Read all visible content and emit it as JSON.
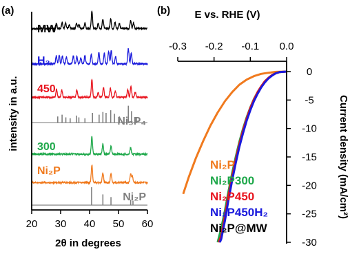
{
  "panel_a": {
    "label": "(a)",
    "xlabel": "2θ in degrees",
    "ylabel": "intensity in a.u.",
    "traces": [
      {
        "label": "MW",
        "color": "#000000"
      },
      {
        "label": "H₂",
        "color": "#1a1adc"
      },
      {
        "label": "450",
        "color": "#e8141e"
      },
      {
        "label": "Ni₅P₄",
        "color": "#808080"
      },
      {
        "label": "300",
        "color": "#1ea84a"
      },
      {
        "label": "Ni₂P",
        "color": "#f07a1e"
      },
      {
        "label": "Ni₂P",
        "color": "#808080"
      }
    ]
  },
  "panel_b": {
    "label": "(b)",
    "xlabel": "E vs. RHE (V)",
    "ylabel": "Current density (mA/cm²)"
  },
  "chart_data": [
    {
      "type": "line",
      "panel": "(a)",
      "xlabel": "2θ in degrees",
      "ylabel": "intensity in a.u.",
      "xlim": [
        20,
        60
      ],
      "x_ticks": [
        20,
        30,
        40,
        50,
        60
      ],
      "series": [
        {
          "name": "MW",
          "color": "#000000",
          "offset": 9,
          "peaks": [
            [
              28.5,
              0.3
            ],
            [
              30.5,
              0.35
            ],
            [
              31.7,
              0.3
            ],
            [
              33,
              0.2
            ],
            [
              35.5,
              0.3
            ],
            [
              36.3,
              0.25
            ],
            [
              38.4,
              0.3
            ],
            [
              40.8,
              1.0
            ],
            [
              43,
              0.3
            ],
            [
              44.6,
              0.55
            ],
            [
              47.3,
              0.55
            ],
            [
              48.8,
              0.35
            ],
            [
              50.3,
              0.3
            ],
            [
              54.2,
              0.45
            ],
            [
              55.2,
              0.3
            ]
          ]
        },
        {
          "name": "H₂",
          "color": "#1a1adc",
          "offset": 7.2,
          "peaks": [
            [
              28.5,
              0.45
            ],
            [
              29.5,
              0.5
            ],
            [
              30.6,
              0.45
            ],
            [
              32,
              0.4
            ],
            [
              34.4,
              0.45
            ],
            [
              35.6,
              0.4
            ],
            [
              37,
              0.35
            ],
            [
              38.4,
              0.5
            ],
            [
              40.6,
              0.55
            ],
            [
              43.2,
              0.65
            ],
            [
              45.1,
              0.6
            ],
            [
              46.6,
              0.7
            ],
            [
              47.5,
              0.75
            ],
            [
              49,
              0.4
            ],
            [
              53.4,
              0.85
            ],
            [
              54.4,
              0.6
            ]
          ]
        },
        {
          "name": "450",
          "color": "#e8141e",
          "offset": 5.5,
          "peaks": [
            [
              28.6,
              0.45
            ],
            [
              30.4,
              0.4
            ],
            [
              35.6,
              0.4
            ],
            [
              40.8,
              1.0
            ],
            [
              43,
              0.3
            ],
            [
              44.8,
              0.55
            ],
            [
              47.2,
              0.5
            ],
            [
              48.9,
              0.35
            ],
            [
              53.2,
              0.45
            ],
            [
              54.3,
              0.6
            ],
            [
              55.8,
              0.3
            ]
          ]
        },
        {
          "name": "Ni₅P₄",
          "color": "#808080",
          "offset": 4.2,
          "type": "reference",
          "peaks": [
            [
              29,
              0.35
            ],
            [
              30.5,
              0.45
            ],
            [
              31.8,
              0.3
            ],
            [
              33.3,
              0.25
            ],
            [
              35.5,
              0.4
            ],
            [
              36.3,
              0.3
            ],
            [
              38.4,
              0.25
            ],
            [
              41,
              0.55
            ],
            [
              43.3,
              0.45
            ],
            [
              44.6,
              0.6
            ],
            [
              45.7,
              0.55
            ],
            [
              47.3,
              0.7
            ],
            [
              48.6,
              0.5
            ],
            [
              50.3,
              0.35
            ],
            [
              53.4,
              0.95
            ],
            [
              54.5,
              0.65
            ],
            [
              56.2,
              0.3
            ]
          ]
        },
        {
          "name": "300",
          "color": "#1ea84a",
          "offset": 2.6,
          "peaks": [
            [
              40.8,
              1.0
            ],
            [
              44.6,
              0.55
            ],
            [
              47.4,
              0.45
            ],
            [
              54.2,
              0.35
            ]
          ]
        },
        {
          "name": "Ni₂P",
          "color": "#f07a1e",
          "offset": 1.15,
          "peaks": [
            [
              40.8,
              1.0
            ],
            [
              44.6,
              0.55
            ],
            [
              47.4,
              0.5
            ],
            [
              54.2,
              0.5
            ],
            [
              54.8,
              0.35
            ]
          ]
        },
        {
          "name": "Ni₂P",
          "color": "#808080",
          "offset": 0,
          "type": "reference",
          "peaks": [
            [
              40.7,
              1.0
            ],
            [
              44.6,
              0.6
            ],
            [
              47.4,
              0.45
            ],
            [
              54.2,
              0.3
            ],
            [
              55,
              0.25
            ]
          ]
        }
      ]
    },
    {
      "type": "line",
      "panel": "(b)",
      "xlabel": "E vs. RHE (V)",
      "ylabel": "Current density (mA/cm²)",
      "xlim": [
        -0.3,
        0.0
      ],
      "ylim": [
        -30,
        0
      ],
      "x_ticks": [
        "-0.3",
        "-0.2",
        "-0.1",
        "0.0"
      ],
      "y_ticks": [
        0,
        -5,
        -10,
        -15,
        -20,
        -25,
        -30
      ],
      "series": [
        {
          "name": "Ni₂P",
          "color": "#f07a1e",
          "x": [
            -0.03,
            -0.05,
            -0.07,
            -0.09,
            -0.11,
            -0.13,
            -0.15,
            -0.17,
            -0.19,
            -0.21,
            -0.23,
            -0.25,
            -0.27,
            -0.285
          ],
          "y": [
            -0.05,
            -0.2,
            -0.4,
            -0.8,
            -1.4,
            -2.3,
            -3.6,
            -5.2,
            -7.2,
            -9.5,
            -12.2,
            -15.2,
            -18.6,
            -21.5
          ]
        },
        {
          "name": "Ni₂P300",
          "color": "#1ea84a",
          "x": [
            -0.02,
            -0.03,
            -0.04,
            -0.05,
            -0.06,
            -0.07,
            -0.08,
            -0.09,
            -0.1,
            -0.11,
            -0.12,
            -0.13,
            -0.14,
            -0.15,
            -0.16,
            -0.17,
            -0.18,
            -0.19
          ],
          "y": [
            -0.1,
            -0.3,
            -0.6,
            -1.1,
            -1.7,
            -2.6,
            -3.6,
            -4.8,
            -6.3,
            -8.0,
            -10.0,
            -12.3,
            -14.9,
            -17.8,
            -21.0,
            -24.4,
            -27.5,
            -30
          ]
        },
        {
          "name": "Ni₂P450",
          "color": "#e8141e",
          "x": [
            -0.02,
            -0.03,
            -0.04,
            -0.05,
            -0.06,
            -0.07,
            -0.08,
            -0.09,
            -0.1,
            -0.11,
            -0.12,
            -0.13,
            -0.14,
            -0.15,
            -0.16,
            -0.17,
            -0.18,
            -0.187
          ],
          "y": [
            -0.1,
            -0.3,
            -0.6,
            -1.1,
            -1.7,
            -2.6,
            -3.6,
            -4.9,
            -6.4,
            -8.2,
            -10.3,
            -12.7,
            -15.4,
            -18.4,
            -21.7,
            -25.3,
            -28.8,
            -30
          ]
        },
        {
          "name": "Ni₂P450H₂",
          "color": "#1a1adc",
          "x": [
            -0.02,
            -0.03,
            -0.04,
            -0.05,
            -0.06,
            -0.07,
            -0.08,
            -0.09,
            -0.1,
            -0.11,
            -0.12,
            -0.13,
            -0.14,
            -0.15,
            -0.16,
            -0.17,
            -0.18,
            -0.184
          ],
          "y": [
            -0.1,
            -0.3,
            -0.7,
            -1.2,
            -1.9,
            -2.8,
            -3.9,
            -5.2,
            -6.8,
            -8.6,
            -10.8,
            -13.2,
            -16.0,
            -19.1,
            -22.5,
            -26.2,
            -29.4,
            -30
          ]
        },
        {
          "name": "Ni₂P@MW",
          "color": "#000000"
        }
      ]
    }
  ],
  "legend_b": [
    {
      "label": "Ni₂P",
      "color": "#f07a1e"
    },
    {
      "label": "Ni₂P300",
      "color": "#1ea84a"
    },
    {
      "label": "Ni₂P450",
      "color": "#e8141e"
    },
    {
      "label": "Ni₂P450H₂",
      "color": "#1a1adc"
    },
    {
      "label": "Ni₂P@MW",
      "color": "#000000"
    }
  ]
}
